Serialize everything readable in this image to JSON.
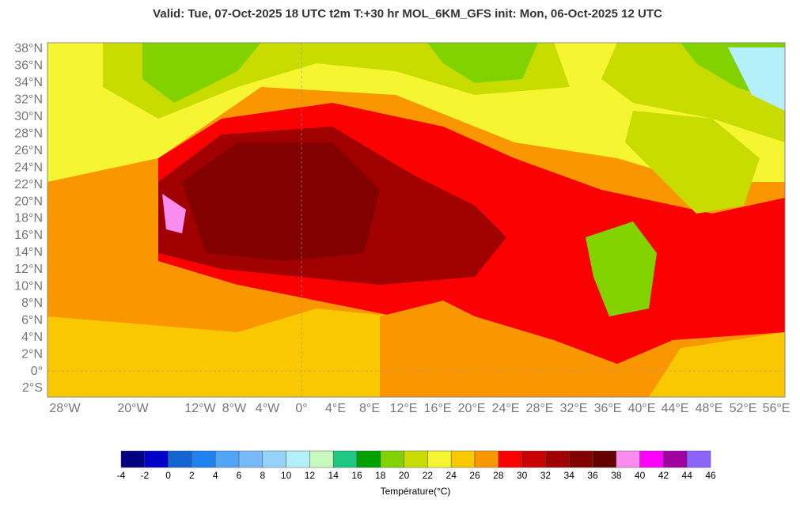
{
  "header": {
    "title": "Valid: Tue, 07-Oct-2025   18 UTC   t2m   T:+30 hr   MOL_6KM_GFS      init: Mon, 06-Oct-2025   12 UTC"
  },
  "map": {
    "lat_labels": [
      "38°N",
      "36°N",
      "34°N",
      "32°N",
      "30°N",
      "28°N",
      "26°N",
      "24°N",
      "22°N",
      "20°N",
      "18°N",
      "16°N",
      "14°N",
      "12°N",
      "10°N",
      "8°N",
      "6°N",
      "4°N",
      "2°N",
      "0°",
      "2°S"
    ],
    "lon_labels": [
      "28°W",
      "20°W",
      "12°W",
      "8°W",
      "4°W",
      "0°",
      "4°E",
      "8°E",
      "12°E",
      "16°E",
      "20°E",
      "24°E",
      "28°E",
      "32°E",
      "36°E",
      "40°E",
      "44°E",
      "48°E",
      "52°E",
      "56°E"
    ]
  },
  "colorbar": {
    "title": "Température(°C)",
    "labels": [
      -4,
      -2,
      0,
      2,
      4,
      6,
      8,
      10,
      12,
      14,
      16,
      18,
      20,
      22,
      24,
      26,
      28,
      30,
      32,
      34,
      36,
      38,
      40,
      42,
      44,
      46
    ],
    "colors": [
      "#000080",
      "#0000c8",
      "#1464d2",
      "#1e82f0",
      "#50a5f5",
      "#78b9fa",
      "#96d2fa",
      "#b4f0fa",
      "#c8fabe",
      "#1ec882",
      "#00a000",
      "#82d200",
      "#c8dc00",
      "#f5f532",
      "#fac800",
      "#fa9600",
      "#fa0000",
      "#c80000",
      "#a00000",
      "#820000",
      "#640000",
      "#fa8cf0",
      "#ff00ff",
      "#a000a0",
      "#8c64ff"
    ]
  }
}
